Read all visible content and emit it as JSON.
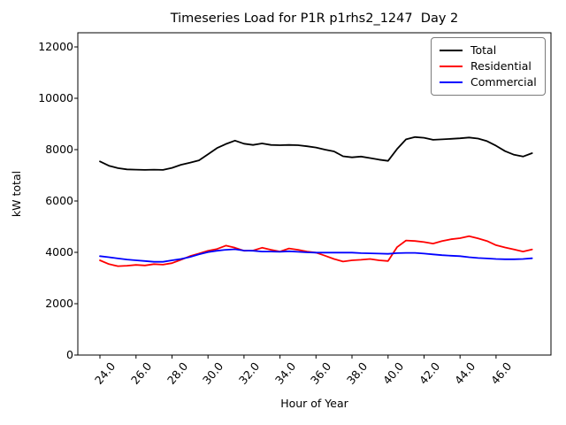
{
  "title": "Timeseries Load for P1R p1rhs2_1247  Day 2",
  "chart_data": {
    "type": "line",
    "title": "Timeseries Load for P1R p1rhs2_1247  Day 2",
    "xlabel": "Hour of Year",
    "ylabel": "kW total",
    "xlim": [
      22.77,
      49.05
    ],
    "ylim": [
      0,
      12550
    ],
    "grid": false,
    "legend_position": "upper right",
    "xticks": [
      24,
      26,
      28,
      30,
      32,
      34,
      36,
      38,
      40,
      42,
      44,
      46
    ],
    "xtick_labels": [
      "24.0",
      "26.0",
      "28.0",
      "30.0",
      "32.0",
      "34.0",
      "36.0",
      "38.0",
      "40.0",
      "42.0",
      "44.0",
      "46.0"
    ],
    "yticks": [
      0,
      2000,
      4000,
      6000,
      8000,
      10000,
      12000
    ],
    "ytick_labels": [
      "0",
      "2000",
      "4000",
      "6000",
      "8000",
      "10000",
      "12000"
    ],
    "x": [
      24,
      24.5,
      25,
      25.5,
      26,
      26.5,
      27,
      27.5,
      28,
      28.5,
      29,
      29.5,
      30,
      30.5,
      31,
      31.5,
      32,
      32.5,
      33,
      33.5,
      34,
      34.5,
      35,
      35.5,
      36,
      36.5,
      37,
      37.5,
      38,
      38.5,
      39,
      39.5,
      40,
      40.5,
      41,
      41.5,
      42,
      42.5,
      43,
      43.5,
      44,
      44.5,
      45,
      45.5,
      46,
      46.5,
      47,
      47.5,
      48
    ],
    "series": [
      {
        "name": "Total",
        "color": "#000000",
        "values": [
          7540,
          7370,
          7280,
          7230,
          7220,
          7210,
          7220,
          7210,
          7290,
          7410,
          7490,
          7580,
          7820,
          8060,
          8220,
          8350,
          8230,
          8180,
          8240,
          8180,
          8170,
          8180,
          8170,
          8130,
          8080,
          8000,
          7930,
          7740,
          7700,
          7730,
          7670,
          7610,
          7560,
          8020,
          8400,
          8490,
          8460,
          8380,
          8400,
          8420,
          8440,
          8470,
          8430,
          8330,
          8150,
          7940,
          7800,
          7730,
          7860
        ]
      },
      {
        "name": "Residential",
        "color": "#ff0000",
        "values": [
          3690,
          3540,
          3460,
          3480,
          3510,
          3490,
          3540,
          3520,
          3580,
          3710,
          3850,
          3950,
          4060,
          4130,
          4260,
          4180,
          4060,
          4070,
          4180,
          4100,
          4030,
          4150,
          4100,
          4030,
          3990,
          3870,
          3740,
          3640,
          3690,
          3710,
          3740,
          3690,
          3660,
          4200,
          4460,
          4440,
          4400,
          4340,
          4440,
          4510,
          4550,
          4630,
          4540,
          4440,
          4280,
          4190,
          4110,
          4030,
          4110
        ]
      },
      {
        "name": "Commercial",
        "color": "#0000ff",
        "values": [
          3850,
          3810,
          3760,
          3720,
          3690,
          3660,
          3630,
          3630,
          3690,
          3740,
          3820,
          3920,
          4010,
          4060,
          4100,
          4120,
          4070,
          4060,
          4030,
          4030,
          4020,
          4040,
          4020,
          4000,
          3990,
          3990,
          3990,
          3990,
          3990,
          3970,
          3960,
          3950,
          3940,
          3970,
          3980,
          3980,
          3950,
          3920,
          3890,
          3870,
          3850,
          3810,
          3780,
          3760,
          3740,
          3730,
          3730,
          3740,
          3770
        ]
      }
    ]
  }
}
